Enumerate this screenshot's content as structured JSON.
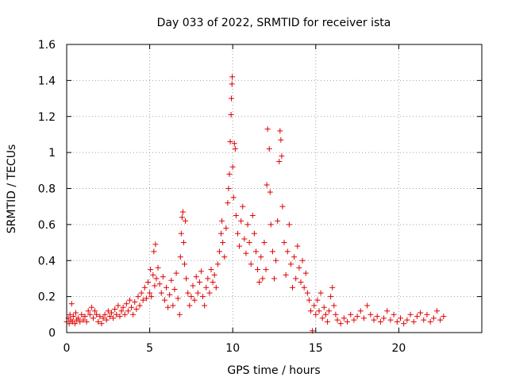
{
  "chart_data": {
    "type": "scatter",
    "title": "Day 033 of 2022, SRMTID for receiver ista",
    "xlabel": "GPS time / hours",
    "ylabel": "SRMTID / TECUs",
    "xlim": [
      0,
      25
    ],
    "ylim": [
      0,
      1.6
    ],
    "grid": true,
    "x_ticks": [
      0,
      5,
      10,
      15,
      20
    ],
    "x_tick_labels": [
      "0",
      "5",
      "10",
      "15",
      "20"
    ],
    "y_ticks": [
      0,
      0.2,
      0.4,
      0.6,
      0.8,
      1.0,
      1.2,
      1.4,
      1.6
    ],
    "y_tick_labels": [
      "0",
      "0.2",
      "0.4",
      "0.6",
      "0.8",
      "1",
      "1.2",
      "1.4",
      "1.6"
    ],
    "marker": "+",
    "series": [
      {
        "name": "SRMTID",
        "color": "#e00000",
        "points": [
          [
            0.0,
            0.06
          ],
          [
            0.1,
            0.08
          ],
          [
            0.15,
            0.05
          ],
          [
            0.2,
            0.1
          ],
          [
            0.25,
            0.07
          ],
          [
            0.3,
            0.16
          ],
          [
            0.35,
            0.06
          ],
          [
            0.4,
            0.09
          ],
          [
            0.5,
            0.05
          ],
          [
            0.55,
            0.11
          ],
          [
            0.6,
            0.07
          ],
          [
            0.7,
            0.08
          ],
          [
            0.8,
            0.06
          ],
          [
            0.9,
            0.1
          ],
          [
            1.0,
            0.07
          ],
          [
            1.1,
            0.09
          ],
          [
            1.2,
            0.06
          ],
          [
            1.3,
            0.12
          ],
          [
            1.4,
            0.1
          ],
          [
            1.5,
            0.14
          ],
          [
            1.6,
            0.08
          ],
          [
            1.7,
            0.12
          ],
          [
            1.8,
            0.1
          ],
          [
            1.9,
            0.06
          ],
          [
            2.0,
            0.09
          ],
          [
            2.1,
            0.05
          ],
          [
            2.2,
            0.08
          ],
          [
            2.3,
            0.1
          ],
          [
            2.4,
            0.07
          ],
          [
            2.5,
            0.12
          ],
          [
            2.6,
            0.09
          ],
          [
            2.7,
            0.11
          ],
          [
            2.8,
            0.08
          ],
          [
            2.9,
            0.13
          ],
          [
            3.0,
            0.1
          ],
          [
            3.1,
            0.15
          ],
          [
            3.2,
            0.09
          ],
          [
            3.3,
            0.12
          ],
          [
            3.4,
            0.14
          ],
          [
            3.5,
            0.1
          ],
          [
            3.6,
            0.16
          ],
          [
            3.7,
            0.12
          ],
          [
            3.8,
            0.18
          ],
          [
            3.9,
            0.14
          ],
          [
            4.0,
            0.1
          ],
          [
            4.1,
            0.17
          ],
          [
            4.2,
            0.13
          ],
          [
            4.3,
            0.2
          ],
          [
            4.4,
            0.15
          ],
          [
            4.5,
            0.22
          ],
          [
            4.6,
            0.18
          ],
          [
            4.7,
            0.25
          ],
          [
            4.8,
            0.19
          ],
          [
            4.9,
            0.28
          ],
          [
            5.0,
            0.22
          ],
          [
            5.05,
            0.35
          ],
          [
            5.1,
            0.2
          ],
          [
            5.2,
            0.32
          ],
          [
            5.25,
            0.45
          ],
          [
            5.3,
            0.26
          ],
          [
            5.35,
            0.49
          ],
          [
            5.4,
            0.3
          ],
          [
            5.5,
            0.36
          ],
          [
            5.6,
            0.27
          ],
          [
            5.7,
            0.22
          ],
          [
            5.8,
            0.31
          ],
          [
            5.9,
            0.18
          ],
          [
            6.0,
            0.25
          ],
          [
            6.1,
            0.14
          ],
          [
            6.2,
            0.21
          ],
          [
            6.3,
            0.29
          ],
          [
            6.4,
            0.15
          ],
          [
            6.5,
            0.24
          ],
          [
            6.6,
            0.33
          ],
          [
            6.7,
            0.19
          ],
          [
            6.8,
            0.1
          ],
          [
            6.85,
            0.42
          ],
          [
            6.9,
            0.55
          ],
          [
            6.95,
            0.64
          ],
          [
            7.0,
            0.67
          ],
          [
            7.05,
            0.5
          ],
          [
            7.1,
            0.38
          ],
          [
            7.15,
            0.62
          ],
          [
            7.2,
            0.3
          ],
          [
            7.3,
            0.22
          ],
          [
            7.4,
            0.15
          ],
          [
            7.5,
            0.2
          ],
          [
            7.6,
            0.26
          ],
          [
            7.7,
            0.18
          ],
          [
            7.8,
            0.31
          ],
          [
            7.9,
            0.22
          ],
          [
            8.0,
            0.28
          ],
          [
            8.1,
            0.34
          ],
          [
            8.2,
            0.2
          ],
          [
            8.3,
            0.15
          ],
          [
            8.4,
            0.25
          ],
          [
            8.5,
            0.3
          ],
          [
            8.6,
            0.22
          ],
          [
            8.7,
            0.35
          ],
          [
            8.8,
            0.28
          ],
          [
            8.9,
            0.32
          ],
          [
            9.0,
            0.25
          ],
          [
            9.1,
            0.38
          ],
          [
            9.2,
            0.45
          ],
          [
            9.3,
            0.55
          ],
          [
            9.35,
            0.62
          ],
          [
            9.4,
            0.5
          ],
          [
            9.5,
            0.42
          ],
          [
            9.6,
            0.58
          ],
          [
            9.7,
            0.72
          ],
          [
            9.75,
            0.8
          ],
          [
            9.8,
            0.88
          ],
          [
            9.85,
            1.06
          ],
          [
            9.9,
            1.21
          ],
          [
            9.92,
            1.3
          ],
          [
            9.95,
            1.38
          ],
          [
            9.97,
            1.42
          ],
          [
            10.0,
            0.92
          ],
          [
            10.05,
            0.75
          ],
          [
            10.1,
            1.05
          ],
          [
            10.15,
            1.02
          ],
          [
            10.2,
            0.65
          ],
          [
            10.3,
            0.55
          ],
          [
            10.4,
            0.48
          ],
          [
            10.5,
            0.62
          ],
          [
            10.6,
            0.7
          ],
          [
            10.7,
            0.52
          ],
          [
            10.8,
            0.44
          ],
          [
            10.9,
            0.6
          ],
          [
            11.0,
            0.5
          ],
          [
            11.1,
            0.38
          ],
          [
            11.2,
            0.65
          ],
          [
            11.3,
            0.55
          ],
          [
            11.4,
            0.45
          ],
          [
            11.5,
            0.35
          ],
          [
            11.6,
            0.28
          ],
          [
            11.7,
            0.42
          ],
          [
            11.8,
            0.3
          ],
          [
            11.9,
            0.5
          ],
          [
            12.0,
            0.35
          ],
          [
            12.05,
            0.82
          ],
          [
            12.1,
            1.13
          ],
          [
            12.2,
            1.02
          ],
          [
            12.25,
            0.78
          ],
          [
            12.3,
            0.6
          ],
          [
            12.4,
            0.45
          ],
          [
            12.5,
            0.3
          ],
          [
            12.6,
            0.4
          ],
          [
            12.7,
            0.62
          ],
          [
            12.8,
            0.95
          ],
          [
            12.85,
            1.12
          ],
          [
            12.9,
            1.07
          ],
          [
            12.95,
            0.98
          ],
          [
            13.0,
            0.7
          ],
          [
            13.1,
            0.5
          ],
          [
            13.2,
            0.32
          ],
          [
            13.3,
            0.45
          ],
          [
            13.4,
            0.6
          ],
          [
            13.5,
            0.38
          ],
          [
            13.6,
            0.25
          ],
          [
            13.7,
            0.42
          ],
          [
            13.8,
            0.3
          ],
          [
            13.9,
            0.48
          ],
          [
            14.0,
            0.36
          ],
          [
            14.1,
            0.28
          ],
          [
            14.2,
            0.4
          ],
          [
            14.3,
            0.25
          ],
          [
            14.4,
            0.33
          ],
          [
            14.5,
            0.22
          ],
          [
            14.6,
            0.18
          ],
          [
            14.7,
            0.12
          ],
          [
            14.8,
            0.01
          ],
          [
            14.9,
            0.15
          ],
          [
            15.0,
            0.1
          ],
          [
            15.1,
            0.18
          ],
          [
            15.2,
            0.12
          ],
          [
            15.3,
            0.22
          ],
          [
            15.4,
            0.08
          ],
          [
            15.5,
            0.14
          ],
          [
            15.6,
            0.1
          ],
          [
            15.7,
            0.06
          ],
          [
            15.8,
            0.12
          ],
          [
            15.9,
            0.2
          ],
          [
            16.0,
            0.25
          ],
          [
            16.1,
            0.15
          ],
          [
            16.2,
            0.1
          ],
          [
            16.3,
            0.07
          ],
          [
            16.5,
            0.05
          ],
          [
            16.7,
            0.08
          ],
          [
            16.9,
            0.06
          ],
          [
            17.1,
            0.1
          ],
          [
            17.3,
            0.07
          ],
          [
            17.5,
            0.09
          ],
          [
            17.7,
            0.12
          ],
          [
            17.9,
            0.08
          ],
          [
            18.1,
            0.15
          ],
          [
            18.3,
            0.1
          ],
          [
            18.5,
            0.07
          ],
          [
            18.7,
            0.09
          ],
          [
            18.9,
            0.06
          ],
          [
            19.1,
            0.08
          ],
          [
            19.3,
            0.12
          ],
          [
            19.5,
            0.07
          ],
          [
            19.7,
            0.1
          ],
          [
            19.9,
            0.06
          ],
          [
            20.1,
            0.08
          ],
          [
            20.3,
            0.05
          ],
          [
            20.5,
            0.07
          ],
          [
            20.7,
            0.1
          ],
          [
            20.9,
            0.06
          ],
          [
            21.1,
            0.09
          ],
          [
            21.3,
            0.11
          ],
          [
            21.5,
            0.07
          ],
          [
            21.7,
            0.1
          ],
          [
            21.9,
            0.06
          ],
          [
            22.1,
            0.08
          ],
          [
            22.3,
            0.12
          ],
          [
            22.5,
            0.07
          ],
          [
            22.7,
            0.09
          ]
        ]
      }
    ]
  }
}
